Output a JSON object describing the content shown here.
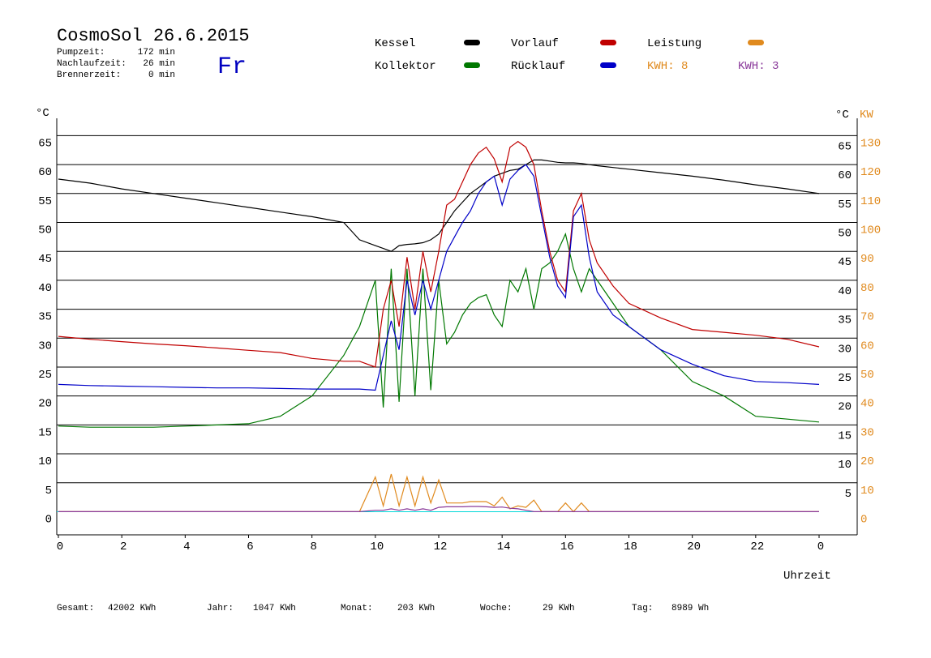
{
  "header": {
    "title": "CosmoSol 26.6.2015",
    "day": "Fr",
    "info": [
      {
        "label": "Pumpzeit:",
        "value": "172 min"
      },
      {
        "label": "Nachlaufzeit:",
        "value": "26 min"
      },
      {
        "label": "Brennerzeit:",
        "value": "0 min"
      }
    ],
    "kwh_labels": [
      {
        "text": "KWH: 8",
        "color": "#e08a1e"
      },
      {
        "text": "KWH: 3",
        "color": "#8a3a9a"
      }
    ]
  },
  "chart_data": {
    "type": "line",
    "y_label": "°C",
    "y2_unit_label": "°C",
    "y2_label": "KW",
    "x_label": "Uhrzeit",
    "x": [
      0,
      1,
      2,
      3,
      4,
      5,
      6,
      7,
      8,
      9,
      9.5,
      10,
      10.25,
      10.5,
      10.75,
      11,
      11.25,
      11.5,
      11.75,
      12,
      12.25,
      12.5,
      12.75,
      13,
      13.25,
      13.5,
      13.75,
      14,
      14.25,
      14.5,
      14.75,
      15,
      15.25,
      15.5,
      15.75,
      16,
      16.25,
      16.5,
      16.75,
      17,
      17.5,
      18,
      19,
      20,
      21,
      22,
      23,
      24
    ],
    "series": [
      {
        "name": "Kessel",
        "color": "#000000",
        "values": [
          57.5,
          56.8,
          55.8,
          55,
          54.2,
          53.4,
          52.6,
          51.8,
          51,
          50,
          47,
          46,
          45.5,
          45,
          46,
          46.2,
          46.3,
          46.5,
          47,
          48,
          50,
          52,
          53.5,
          55,
          56,
          57,
          58,
          58.5,
          59,
          59.2,
          60,
          60.8,
          60.8,
          60.6,
          60.4,
          60.3,
          60.3,
          60.2,
          60,
          59.8,
          59.5,
          59.2,
          58.6,
          58,
          57.3,
          56.5,
          55.8,
          55
        ]
      },
      {
        "name": "Kollektor",
        "color": "#007800",
        "values": [
          14.8,
          14.6,
          14.6,
          14.6,
          14.8,
          15,
          15.2,
          16.5,
          20,
          27,
          32,
          40,
          18,
          42,
          19,
          42,
          20,
          42,
          21,
          40,
          29,
          31,
          34,
          36,
          37,
          37.5,
          34,
          32,
          40,
          38,
          42,
          35,
          42,
          43,
          45,
          48,
          42,
          38,
          42,
          40,
          36,
          32,
          28,
          22.5,
          20,
          16.5,
          16,
          15.5
        ]
      },
      {
        "name": "Vorlauf",
        "color": "#c00000",
        "values": [
          30.3,
          29.8,
          29.4,
          29,
          28.7,
          28.3,
          27.9,
          27.5,
          26.5,
          26,
          26,
          25,
          35,
          40,
          32,
          44,
          35,
          45,
          38,
          45,
          53,
          54,
          57,
          60,
          62,
          63,
          61,
          57,
          63,
          64,
          63,
          60,
          52,
          45,
          40,
          38,
          52,
          55,
          47,
          43,
          39,
          36,
          33.5,
          31.5,
          31,
          30.5,
          29.8,
          28.5
        ]
      },
      {
        "name": "Rücklauf",
        "color": "#0000c8",
        "values": [
          22,
          21.8,
          21.7,
          21.6,
          21.5,
          21.4,
          21.4,
          21.3,
          21.2,
          21.2,
          21.2,
          21,
          27,
          33,
          28,
          40,
          34,
          40,
          35,
          40,
          45,
          47.5,
          50,
          52,
          55,
          57,
          58,
          53,
          57.5,
          59,
          60,
          58,
          51,
          44,
          39,
          37,
          51,
          53,
          44,
          38,
          34,
          32,
          28,
          25.5,
          23.5,
          22.5,
          22.3,
          22
        ]
      },
      {
        "name": "Leistung",
        "color": "#e08a1e",
        "axis": "y2",
        "values": [
          0,
          0,
          0,
          0,
          0,
          0,
          0,
          0,
          0,
          0,
          0,
          12,
          2,
          13,
          2,
          12,
          2,
          12,
          3,
          11,
          3,
          3,
          3,
          3.5,
          3.5,
          3.5,
          2,
          5,
          1,
          2,
          1.5,
          4,
          0,
          0,
          0,
          3,
          0,
          3,
          0,
          0,
          0,
          0,
          0,
          0,
          0,
          0,
          0,
          0
        ]
      },
      {
        "color": "#8a3a9a",
        "axis": "y2",
        "values": [
          0,
          0,
          0,
          0,
          0,
          0,
          0,
          0,
          0,
          0,
          0,
          0.5,
          0.5,
          1,
          0.5,
          1,
          0.5,
          1,
          0.5,
          1.5,
          1.7,
          1.7,
          1.7,
          1.8,
          1.8,
          1.7,
          1.5,
          1.6,
          1.2,
          1,
          0.5,
          0,
          0,
          0,
          0,
          0,
          0,
          0,
          0,
          0,
          0,
          0,
          0,
          0,
          0,
          0,
          0,
          0
        ]
      }
    ],
    "zero_line_color": "#00d8d8",
    "xlim": [
      0,
      24
    ],
    "xticks": [
      0,
      2,
      4,
      6,
      8,
      10,
      12,
      14,
      16,
      18,
      20,
      22,
      {
        "value": 24,
        "label": "0"
      }
    ],
    "ylim": [
      -4,
      68
    ],
    "yticks": [
      0,
      5,
      10,
      15,
      20,
      25,
      30,
      35,
      40,
      45,
      50,
      55,
      60,
      65
    ],
    "y2lim": [
      -8,
      136
    ],
    "y2ticks": [
      0,
      10,
      20,
      30,
      40,
      50,
      60,
      70,
      80,
      90,
      100,
      110,
      120,
      130
    ],
    "grid": true
  },
  "footer": [
    {
      "label": "Gesamt:",
      "value": "42002 KWh"
    },
    {
      "label": "Jahr:",
      "value": "1047 KWh"
    },
    {
      "label": "Monat:",
      "value": "203 KWh"
    },
    {
      "label": "Woche:",
      "value": "29 KWh"
    },
    {
      "label": "Tag:",
      "value": "8989 Wh"
    }
  ]
}
